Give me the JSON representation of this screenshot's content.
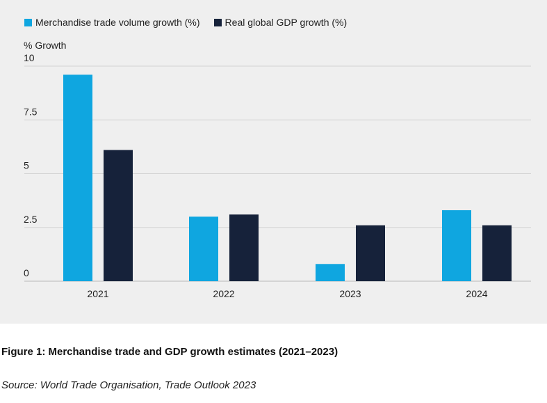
{
  "chart_data": {
    "type": "bar",
    "categories": [
      "2021",
      "2022",
      "2023",
      "2024"
    ],
    "series": [
      {
        "name": "Merchandise trade volume growth (%)",
        "values": [
          9.6,
          3.0,
          0.8,
          3.3
        ],
        "color": "#0fa6e0"
      },
      {
        "name": "Real global GDP growth (%)",
        "values": [
          6.1,
          3.1,
          2.6,
          2.6
        ],
        "color": "#16223a"
      }
    ],
    "ylabel": "% Growth",
    "ylim": [
      0,
      10
    ],
    "yticks": [
      {
        "value": 0,
        "label": "0"
      },
      {
        "value": 2.5,
        "label": "2.5"
      },
      {
        "value": 5,
        "label": "5"
      },
      {
        "value": 7.5,
        "label": "7.5"
      },
      {
        "value": 10,
        "label": "10"
      }
    ],
    "grid": true,
    "legend_position": "top-left"
  },
  "caption": "Figure 1: Merchandise trade and GDP growth estimates (2021–2023)",
  "source": "Source: World Trade Organisation, Trade Outlook 2023"
}
